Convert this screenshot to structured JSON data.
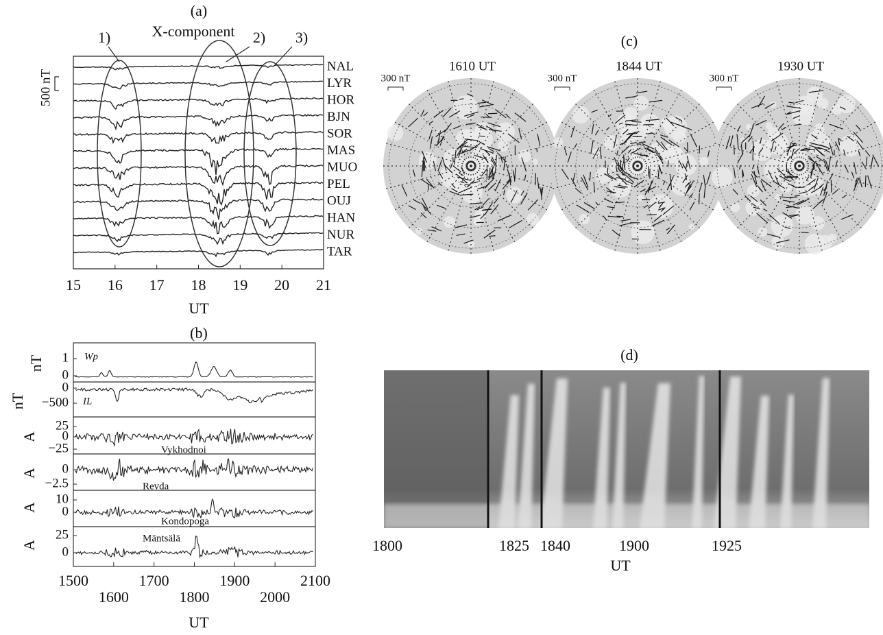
{
  "panel_a": {
    "label": "(a)",
    "title": "X-component",
    "scale": "500 nT",
    "events": [
      "1)",
      "2)",
      "3)"
    ],
    "stations": [
      "NAL",
      "LYR",
      "HOR",
      "BJN",
      "SOR",
      "MAS",
      "MUO",
      "PEL",
      "OUJ",
      "HAN",
      "NUR",
      "TAR"
    ],
    "x_ticks": [
      "15",
      "16",
      "17",
      "18",
      "19",
      "20",
      "21"
    ],
    "x_label": "UT"
  },
  "panel_b": {
    "label": "(b)",
    "rows": [
      {
        "name": "Wp",
        "y_label": "nT",
        "y_ticks": [
          "1",
          "0"
        ]
      },
      {
        "name": "IL",
        "y_label": "nT",
        "y_ticks": [
          "0",
          "−500"
        ]
      },
      {
        "name": "Vykhodnoi",
        "y_label": "A",
        "y_ticks": [
          "25",
          "0",
          "−25"
        ]
      },
      {
        "name": "Revda",
        "y_label": "A",
        "y_ticks": [
          "0",
          "−2.5"
        ]
      },
      {
        "name": "Kondopoga",
        "y_label": "A",
        "y_ticks": [
          "10",
          "0"
        ]
      },
      {
        "name": "Mäntsälä",
        "y_label": "A",
        "y_ticks": [
          "25",
          "0"
        ]
      }
    ],
    "x_ticks": [
      "1500",
      "1600",
      "1700",
      "1800",
      "1900",
      "2000",
      "2100"
    ],
    "x_label": "UT"
  },
  "panel_c": {
    "label": "(c)",
    "maps": [
      {
        "time": "1610 UT",
        "scale": "300 nT"
      },
      {
        "time": "1844 UT",
        "scale": "300 nT"
      },
      {
        "time": "1930 UT",
        "scale": "300 nT"
      }
    ]
  },
  "panel_d": {
    "label": "(d)",
    "x_ticks": [
      "1800",
      "1825",
      "1840",
      "1900",
      "1925"
    ],
    "x_label": "UT"
  }
}
